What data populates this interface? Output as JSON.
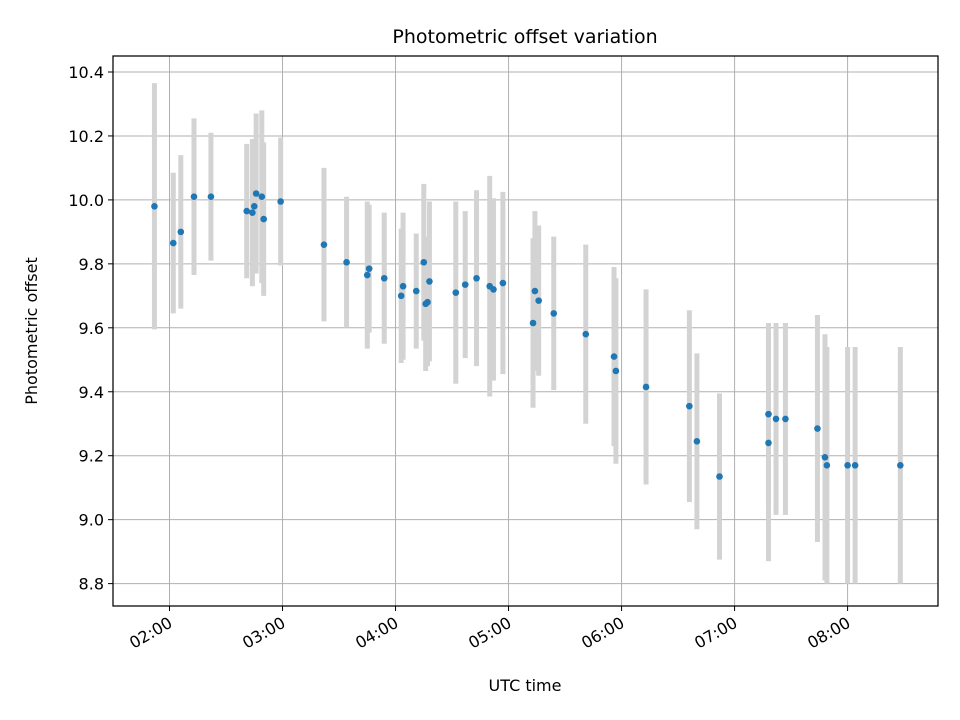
{
  "chart_data": {
    "type": "scatter",
    "title": "Photometric offset variation",
    "xlabel": "UTC time",
    "ylabel": "Photometric offset",
    "x_ticks": [
      "02:00",
      "03:00",
      "04:00",
      "05:00",
      "06:00",
      "07:00",
      "08:00"
    ],
    "y_ticks": [
      "8.8",
      "9.0",
      "9.2",
      "9.4",
      "9.6",
      "9.8",
      "10.0",
      "10.2",
      "10.4"
    ],
    "xlim": [
      "01:30",
      "08:48"
    ],
    "ylim": [
      8.73,
      10.45
    ],
    "grid": true,
    "colors": {
      "point": "#1f77b4",
      "errorbar": "#d3d3d3",
      "grid": "#b0b0b0"
    },
    "series": [
      {
        "points": [
          {
            "x": "01:52",
            "y": 9.98,
            "err": 0.385
          },
          {
            "x": "02:02",
            "y": 9.865,
            "err": 0.22
          },
          {
            "x": "02:06",
            "y": 9.9,
            "err": 0.24
          },
          {
            "x": "02:13",
            "y": 10.01,
            "err": 0.245
          },
          {
            "x": "02:22",
            "y": 10.01,
            "err": 0.2
          },
          {
            "x": "02:41",
            "y": 9.965,
            "err": 0.21
          },
          {
            "x": "02:44",
            "y": 9.96,
            "err": 0.23
          },
          {
            "x": "02:45",
            "y": 9.98,
            "err": 0.21
          },
          {
            "x": "02:46",
            "y": 10.02,
            "err": 0.25
          },
          {
            "x": "02:49",
            "y": 10.01,
            "err": 0.27
          },
          {
            "x": "02:50",
            "y": 9.94,
            "err": 0.24
          },
          {
            "x": "02:59",
            "y": 9.995,
            "err": 0.2
          },
          {
            "x": "03:22",
            "y": 9.86,
            "err": 0.24
          },
          {
            "x": "03:34",
            "y": 9.805,
            "err": 0.205
          },
          {
            "x": "03:45",
            "y": 9.765,
            "err": 0.23
          },
          {
            "x": "03:46",
            "y": 9.785,
            "err": 0.2
          },
          {
            "x": "03:54",
            "y": 9.755,
            "err": 0.205
          },
          {
            "x": "04:03",
            "y": 9.7,
            "err": 0.21
          },
          {
            "x": "04:04",
            "y": 9.73,
            "err": 0.23
          },
          {
            "x": "04:11",
            "y": 9.715,
            "err": 0.18
          },
          {
            "x": "04:15",
            "y": 9.805,
            "err": 0.245
          },
          {
            "x": "04:16",
            "y": 9.675,
            "err": 0.21
          },
          {
            "x": "04:17",
            "y": 9.68,
            "err": 0.2
          },
          {
            "x": "04:18",
            "y": 9.745,
            "err": 0.25
          },
          {
            "x": "04:32",
            "y": 9.71,
            "err": 0.285
          },
          {
            "x": "04:37",
            "y": 9.735,
            "err": 0.23
          },
          {
            "x": "04:43",
            "y": 9.755,
            "err": 0.275
          },
          {
            "x": "04:50",
            "y": 9.73,
            "err": 0.345
          },
          {
            "x": "04:52",
            "y": 9.72,
            "err": 0.285
          },
          {
            "x": "04:57",
            "y": 9.74,
            "err": 0.285
          },
          {
            "x": "05:13",
            "y": 9.615,
            "err": 0.265
          },
          {
            "x": "05:14",
            "y": 9.715,
            "err": 0.25
          },
          {
            "x": "05:16",
            "y": 9.685,
            "err": 0.235
          },
          {
            "x": "05:24",
            "y": 9.645,
            "err": 0.24
          },
          {
            "x": "05:41",
            "y": 9.58,
            "err": 0.28
          },
          {
            "x": "05:56",
            "y": 9.51,
            "err": 0.28
          },
          {
            "x": "05:57",
            "y": 9.465,
            "err": 0.29
          },
          {
            "x": "06:13",
            "y": 9.415,
            "err": 0.305
          },
          {
            "x": "06:36",
            "y": 9.355,
            "err": 0.3
          },
          {
            "x": "06:40",
            "y": 9.245,
            "err": 0.275
          },
          {
            "x": "06:52",
            "y": 9.135,
            "err": 0.26
          },
          {
            "x": "07:18",
            "y": 9.33,
            "err": 0.285
          },
          {
            "x": "07:18",
            "y": 9.24,
            "err": 0.37
          },
          {
            "x": "07:22",
            "y": 9.315,
            "err": 0.3
          },
          {
            "x": "07:27",
            "y": 9.315,
            "err": 0.3
          },
          {
            "x": "07:44",
            "y": 9.285,
            "err": 0.355
          },
          {
            "x": "07:48",
            "y": 9.195,
            "err": 0.385
          },
          {
            "x": "07:49",
            "y": 9.17,
            "err": 0.37
          },
          {
            "x": "08:00",
            "y": 9.17,
            "err": 0.37
          },
          {
            "x": "08:04",
            "y": 9.17,
            "err": 0.37
          },
          {
            "x": "08:28",
            "y": 9.17,
            "err": 0.37
          }
        ]
      }
    ]
  }
}
